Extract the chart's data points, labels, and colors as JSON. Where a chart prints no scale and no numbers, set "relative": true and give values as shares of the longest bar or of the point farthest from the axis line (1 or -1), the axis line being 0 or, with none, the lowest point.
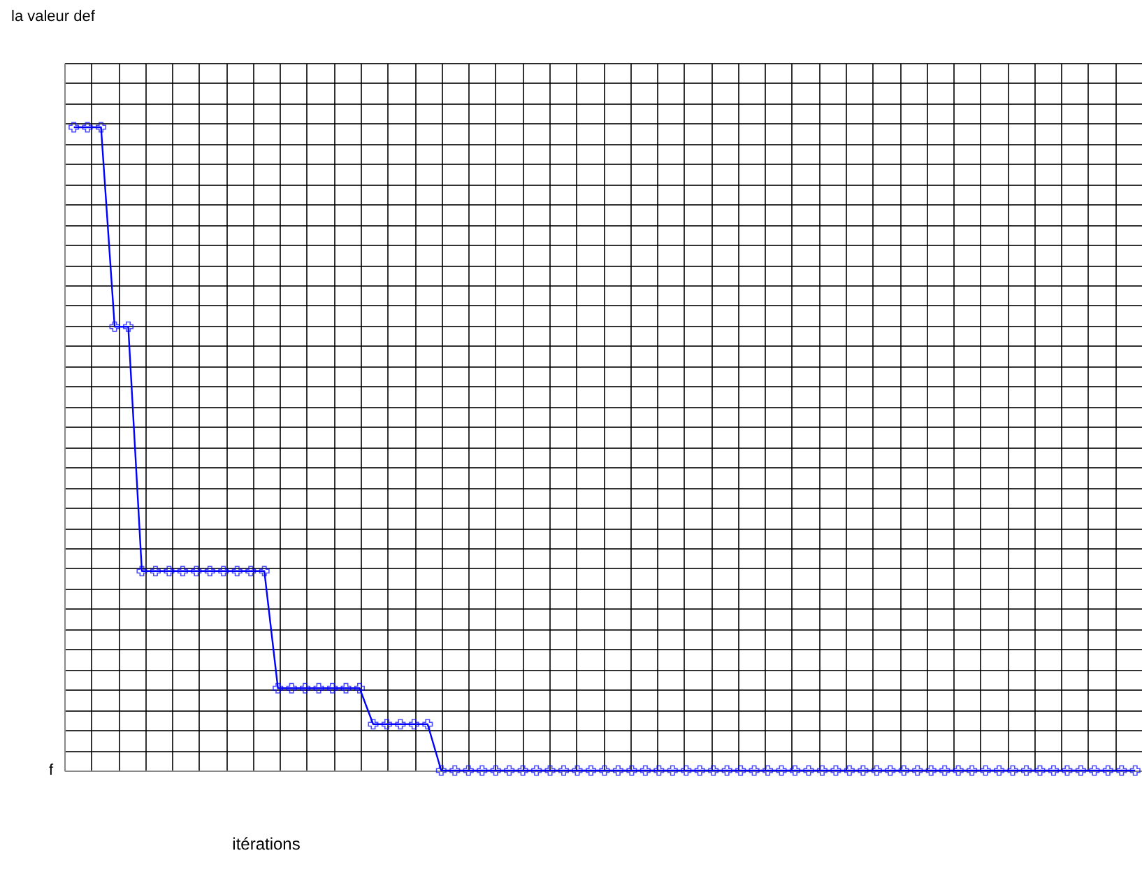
{
  "chart_data": {
    "type": "line",
    "relative": true,
    "xlabel": "itérations",
    "annotations": [
      "la valeur def",
      "f"
    ],
    "grid": true,
    "marker": "cross",
    "line_style": "solid",
    "categories": [
      null,
      null,
      null,
      null,
      null,
      null,
      null,
      null,
      null,
      null,
      null,
      null,
      null,
      null,
      null,
      null,
      null,
      null,
      null,
      null,
      null,
      null,
      null,
      null,
      null,
      null,
      null,
      null,
      null,
      null,
      null,
      null,
      null,
      null,
      null,
      null,
      null,
      null,
      null,
      null,
      null,
      null,
      null,
      null,
      null,
      null,
      null,
      null,
      null,
      null,
      null,
      null,
      null,
      null,
      null,
      null,
      null,
      null,
      null,
      null,
      null,
      null,
      null,
      null,
      null,
      null,
      null,
      null,
      null,
      null,
      null,
      null,
      null,
      null,
      null,
      null,
      null,
      null,
      null
    ],
    "series": [
      {
        "color": "#0000ff",
        "values": [
          1,
          1,
          1,
          0.69,
          0.69,
          0.31,
          0.31,
          0.31,
          0.31,
          0.31,
          0.31,
          0.31,
          0.31,
          0.31,
          0.31,
          0.128,
          0.128,
          0.128,
          0.128,
          0.128,
          0.128,
          0.128,
          0.072,
          0.072,
          0.072,
          0.072,
          0.072,
          0,
          0,
          0,
          0,
          0,
          0,
          0,
          0,
          0,
          0,
          0,
          0,
          0,
          0,
          0,
          0,
          0,
          0,
          0,
          0,
          0,
          0,
          0,
          0,
          0,
          0,
          0,
          0,
          0,
          0,
          0,
          0,
          0,
          0,
          0,
          0,
          0,
          0,
          0,
          0,
          0,
          0,
          0,
          0,
          0,
          0,
          0,
          0,
          0,
          0,
          0,
          0
        ]
      }
    ]
  }
}
